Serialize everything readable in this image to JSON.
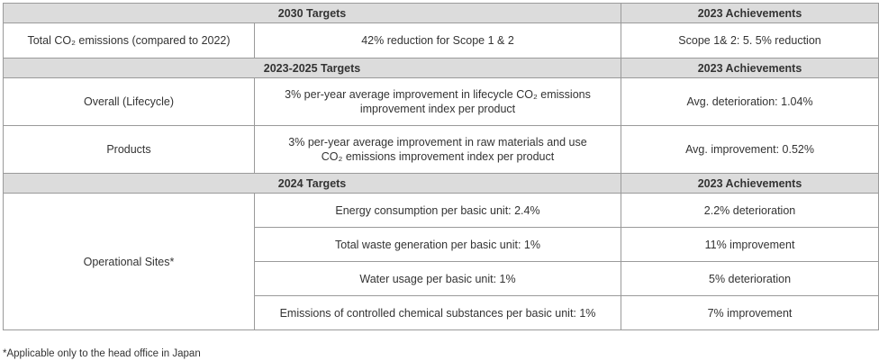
{
  "sections": [
    {
      "target_header": "2030 Targets",
      "achieve_header": "2023 Achievements",
      "rows": [
        {
          "category": "Total CO₂ emissions (compared to 2022)",
          "target": "42% reduction for Scope 1 & 2",
          "achievement": "Scope 1& 2: 5. 5% reduction"
        }
      ]
    },
    {
      "target_header": "2023-2025 Targets",
      "achieve_header": "2023 Achievements",
      "rows": [
        {
          "category": "Overall (Lifecycle)",
          "target_line1": "3% per-year average improvement in lifecycle CO₂ emissions",
          "target_line2": "improvement index per product",
          "achievement": "Avg. deterioration: 1.04%"
        },
        {
          "category": "Products",
          "target_line1": "3% per-year average improvement in raw materials and use",
          "target_line2": "CO₂ emissions improvement index per product",
          "achievement": "Avg. improvement: 0.52%"
        }
      ]
    },
    {
      "target_header": "2024 Targets",
      "achieve_header": "2023 Achievements",
      "category": "Operational Sites*",
      "rows": [
        {
          "target": "Energy consumption per basic unit: 2.4%",
          "achievement": "2.2% deterioration"
        },
        {
          "target": "Total waste generation per basic unit: 1%",
          "achievement": "11% improvement"
        },
        {
          "target": "Water usage per basic unit: 1%",
          "achievement": "5% deterioration"
        },
        {
          "target": "Emissions of controlled chemical substances per basic unit: 1%",
          "achievement": "7% improvement"
        }
      ]
    }
  ],
  "footnote": "*Applicable only to the head office in Japan"
}
